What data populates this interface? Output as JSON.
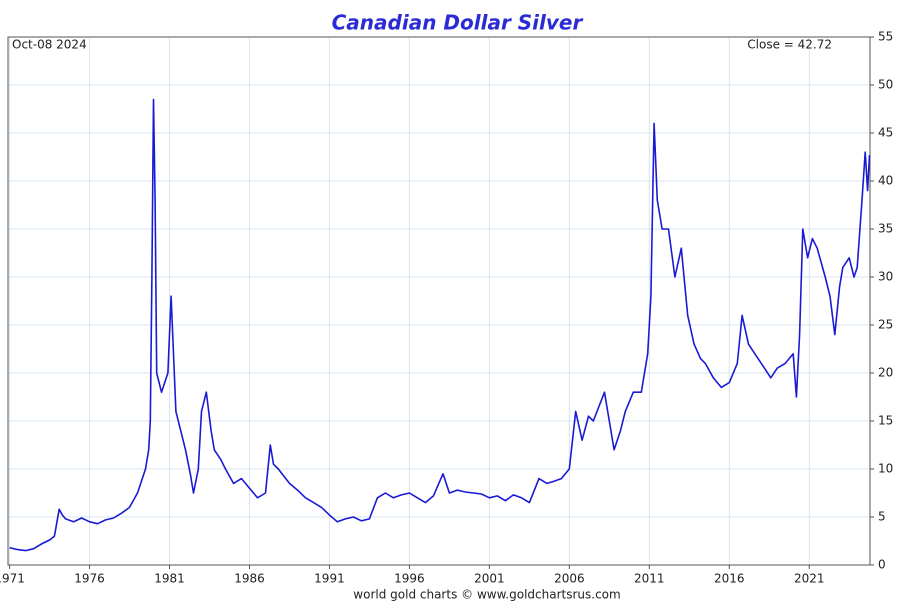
{
  "chart_data": {
    "type": "line",
    "title": "Canadian Dollar Silver",
    "date_label": "Oct-08  2024",
    "close_label": "Close = 42.72",
    "source": "world gold charts © www.goldchartsrus.com",
    "xlim": [
      1970.9,
      2024.8
    ],
    "ylim": [
      0,
      55
    ],
    "xticks": [
      1971,
      1976,
      1981,
      1986,
      1991,
      1996,
      2001,
      2006,
      2011,
      2016,
      2021
    ],
    "yticks": [
      0,
      5,
      10,
      15,
      20,
      25,
      30,
      35,
      40,
      45,
      50,
      55
    ],
    "grid": true,
    "series": [
      {
        "name": "Canadian Dollar Silver",
        "color": "#1a1ad6",
        "x": [
          1971.0,
          1971.5,
          1972.0,
          1972.5,
          1973.0,
          1973.5,
          1973.8,
          1974.1,
          1974.3,
          1974.5,
          1975.0,
          1975.5,
          1976.0,
          1976.5,
          1977.0,
          1977.5,
          1978.0,
          1978.5,
          1979.0,
          1979.3,
          1979.5,
          1979.7,
          1979.8,
          1979.9,
          1980.0,
          1980.1,
          1980.2,
          1980.5,
          1980.9,
          1981.1,
          1981.4,
          1981.7,
          1982.0,
          1982.3,
          1982.5,
          1982.8,
          1983.0,
          1983.3,
          1983.6,
          1983.8,
          1984.2,
          1984.5,
          1985.0,
          1985.5,
          1986.0,
          1986.5,
          1987.0,
          1987.3,
          1987.5,
          1987.8,
          1988.5,
          1989.0,
          1989.5,
          1990.0,
          1990.5,
          1991.0,
          1991.5,
          1992.0,
          1992.5,
          1993.0,
          1993.5,
          1994.0,
          1994.5,
          1995.0,
          1995.5,
          1996.0,
          1996.5,
          1997.0,
          1997.5,
          1998.1,
          1998.5,
          1999.0,
          1999.5,
          2000.0,
          2000.5,
          2001.0,
          2001.5,
          2002.0,
          2002.5,
          2003.0,
          2003.5,
          2004.1,
          2004.6,
          2005.0,
          2005.5,
          2006.0,
          2006.4,
          2006.8,
          2007.2,
          2007.5,
          2008.2,
          2008.5,
          2008.8,
          2009.2,
          2009.5,
          2010.0,
          2010.5,
          2010.9,
          2011.1,
          2011.3,
          2011.5,
          2011.8,
          2012.2,
          2012.6,
          2013.0,
          2013.4,
          2013.8,
          2014.2,
          2014.5,
          2015.0,
          2015.5,
          2016.0,
          2016.5,
          2016.8,
          2017.2,
          2017.6,
          2018.0,
          2018.6,
          2019.0,
          2019.5,
          2020.0,
          2020.2,
          2020.4,
          2020.6,
          2020.9,
          2021.2,
          2021.5,
          2022.0,
          2022.3,
          2022.6,
          2022.9,
          2023.1,
          2023.5,
          2023.8,
          2024.0,
          2024.3,
          2024.5,
          2024.65,
          2024.77
        ],
        "values": [
          1.8,
          1.6,
          1.5,
          1.7,
          2.2,
          2.6,
          3.0,
          5.8,
          5.2,
          4.8,
          4.5,
          4.9,
          4.5,
          4.3,
          4.7,
          4.9,
          5.4,
          6.0,
          7.5,
          9.0,
          10.0,
          12.0,
          15.0,
          30.0,
          48.5,
          38.0,
          20.0,
          18.0,
          20.0,
          28.0,
          16.0,
          14.0,
          12.0,
          9.5,
          7.5,
          10.0,
          16.0,
          18.0,
          14.0,
          12.0,
          11.0,
          10.0,
          8.5,
          9.0,
          8.0,
          7.0,
          7.5,
          12.5,
          10.5,
          10.0,
          8.5,
          7.8,
          7.0,
          6.5,
          6.0,
          5.2,
          4.5,
          4.8,
          5.0,
          4.6,
          4.8,
          7.0,
          7.5,
          7.0,
          7.3,
          7.5,
          7.0,
          6.5,
          7.2,
          9.5,
          7.5,
          7.8,
          7.6,
          7.5,
          7.4,
          7.0,
          7.2,
          6.7,
          7.3,
          7.0,
          6.5,
          9.0,
          8.5,
          8.7,
          9.0,
          10.0,
          16.0,
          13.0,
          15.5,
          15.0,
          18.0,
          15.0,
          12.0,
          14.0,
          16.0,
          18.0,
          18.0,
          22.0,
          28.0,
          46.0,
          38.0,
          35.0,
          35.0,
          30.0,
          33.0,
          26.0,
          23.0,
          21.5,
          21.0,
          19.5,
          18.5,
          19.0,
          21.0,
          26.0,
          23.0,
          22.0,
          21.0,
          19.5,
          20.5,
          21.0,
          22.0,
          17.5,
          24.0,
          35.0,
          32.0,
          34.0,
          33.0,
          30.0,
          28.0,
          24.0,
          29.0,
          31.0,
          32.0,
          30.0,
          31.0,
          38.0,
          43.0,
          39.0,
          42.7
        ]
      }
    ]
  }
}
